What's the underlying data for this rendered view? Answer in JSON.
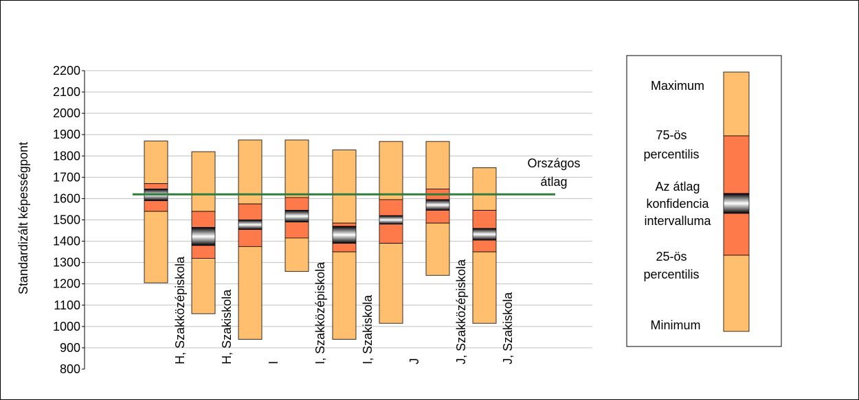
{
  "chart_data": {
    "type": "box",
    "ylabel": "Standardizált képességpont",
    "ylim": [
      800,
      2200
    ],
    "yticks": [
      800,
      900,
      1000,
      1100,
      1200,
      1300,
      1400,
      1500,
      1600,
      1700,
      1800,
      1900,
      2000,
      2100,
      2200
    ],
    "grid": true,
    "reference_line": {
      "value": 1620,
      "label_lines": [
        "Országos",
        "átlag"
      ]
    },
    "categories": [
      "H, Szakközépiskola",
      "H, Szakiskola",
      "I",
      "I, Szakközépiskola",
      "I, Szakiskola",
      "J",
      "J, Szakközépiskola",
      "J, Szakiskola"
    ],
    "boxes": [
      {
        "min": 1205,
        "q1": 1540,
        "ci_low": 1590,
        "ci_high": 1645,
        "q3": 1670,
        "max": 1870
      },
      {
        "min": 1060,
        "q1": 1320,
        "ci_low": 1380,
        "ci_high": 1465,
        "q3": 1540,
        "max": 1820
      },
      {
        "min": 940,
        "q1": 1375,
        "ci_low": 1455,
        "ci_high": 1500,
        "q3": 1575,
        "max": 1875
      },
      {
        "min": 1258,
        "q1": 1415,
        "ci_low": 1490,
        "ci_high": 1545,
        "q3": 1605,
        "max": 1875
      },
      {
        "min": 940,
        "q1": 1350,
        "ci_low": 1390,
        "ci_high": 1470,
        "q3": 1485,
        "max": 1828
      },
      {
        "min": 1015,
        "q1": 1390,
        "ci_low": 1480,
        "ci_high": 1520,
        "q3": 1595,
        "max": 1868
      },
      {
        "min": 1240,
        "q1": 1485,
        "ci_low": 1545,
        "ci_high": 1595,
        "q3": 1645,
        "max": 1868
      },
      {
        "min": 1015,
        "q1": 1350,
        "ci_low": 1405,
        "ci_high": 1460,
        "q3": 1545,
        "max": 1745
      }
    ],
    "legend": {
      "maximum": "Maximum",
      "p75_line1": "75-ös",
      "p75_line2": "percentilis",
      "ci_line1": "Az átlag",
      "ci_line2": "konfidencia",
      "ci_line3": "intervalluma",
      "p25_line1": "25-ös",
      "p25_line2": "percentilis",
      "minimum": "Minimum"
    },
    "colors": {
      "outer": "#FFBF6F",
      "mid": "#FF7A4A",
      "ref_line": "#2E7D3C",
      "grid": "#C0C0C0"
    }
  }
}
